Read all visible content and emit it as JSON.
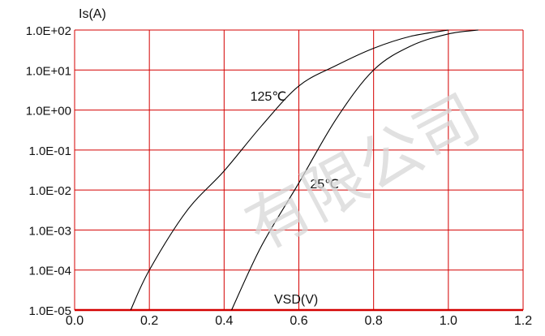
{
  "chart_data": {
    "type": "line",
    "title": "",
    "ylabel": "Is(A)",
    "xlabel": "VSD(V)",
    "yscale": "log",
    "xlim": [
      0.0,
      1.2
    ],
    "ylim": [
      1e-05,
      100
    ],
    "xticks": [
      0.0,
      0.2,
      0.4,
      0.6,
      0.8,
      1.0,
      1.2
    ],
    "xtick_labels": [
      "0.0",
      "0.2",
      "0.4",
      "0.6",
      "0.8",
      "1.0",
      "1.2"
    ],
    "yticks": [
      100,
      10,
      1,
      0.1,
      0.01,
      0.001,
      0.0001,
      1e-05
    ],
    "ytick_labels": [
      "1.0E+02",
      "1.0E+01",
      "1.0E+00",
      "1.0E-01",
      "1.0E-02",
      "1.0E-03",
      "1.0E-04",
      "1.0E-05"
    ],
    "grid": true,
    "grid_color": "#d40000",
    "line_color": "#000000",
    "series": [
      {
        "name": "125℃",
        "x": [
          0.15,
          0.2,
          0.3,
          0.4,
          0.5,
          0.6,
          0.7,
          0.8,
          0.9,
          1.0
        ],
        "y": [
          1e-05,
          0.0001,
          0.003,
          0.03,
          0.4,
          4.0,
          13.0,
          35.0,
          70.0,
          100.0
        ]
      },
      {
        "name": "25℃",
        "x": [
          0.42,
          0.5,
          0.6,
          0.7,
          0.8,
          0.9,
          1.0,
          1.08
        ],
        "y": [
          1e-05,
          0.0004,
          0.015,
          0.6,
          10.0,
          40.0,
          80.0,
          100.0
        ]
      }
    ],
    "annotations": [
      {
        "text": "125℃",
        "x": 0.47,
        "y": 1.7
      },
      {
        "text": "25℃",
        "x": 0.63,
        "y": 0.011
      }
    ]
  },
  "watermark": "有限公司"
}
